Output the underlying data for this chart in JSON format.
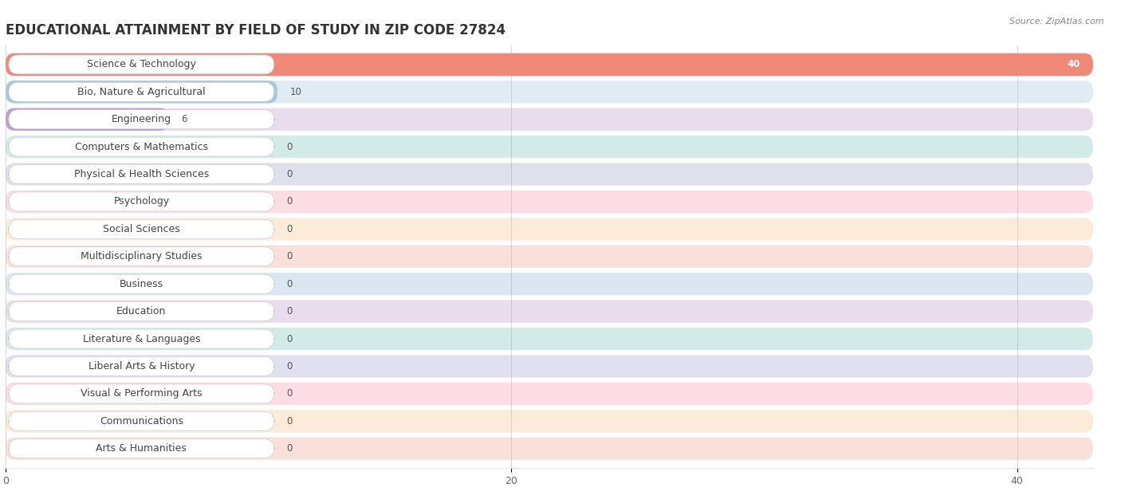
{
  "title": "EDUCATIONAL ATTAINMENT BY FIELD OF STUDY IN ZIP CODE 27824",
  "source": "Source: ZipAtlas.com",
  "categories": [
    "Science & Technology",
    "Bio, Nature & Agricultural",
    "Engineering",
    "Computers & Mathematics",
    "Physical & Health Sciences",
    "Psychology",
    "Social Sciences",
    "Multidisciplinary Studies",
    "Business",
    "Education",
    "Literature & Languages",
    "Liberal Arts & History",
    "Visual & Performing Arts",
    "Communications",
    "Arts & Humanities"
  ],
  "values": [
    40,
    10,
    6,
    0,
    0,
    0,
    0,
    0,
    0,
    0,
    0,
    0,
    0,
    0,
    0
  ],
  "bar_colors": [
    "#F08878",
    "#A8C8E0",
    "#C0A0CC",
    "#7EC8C0",
    "#A8A8CC",
    "#F8A0B0",
    "#F8C890",
    "#F0A898",
    "#98B8D8",
    "#C0A0CC",
    "#7EC8C0",
    "#A8A8D8",
    "#F8A0B8",
    "#F8C890",
    "#F0A898"
  ],
  "xlim_max": 43,
  "xticks": [
    0,
    20,
    40
  ],
  "title_fontsize": 12,
  "label_fontsize": 9,
  "value_fontsize": 8.5,
  "background_color": "#ffffff",
  "grid_color": "#d8d8d8",
  "row_bg_color": "#f5f5f5"
}
